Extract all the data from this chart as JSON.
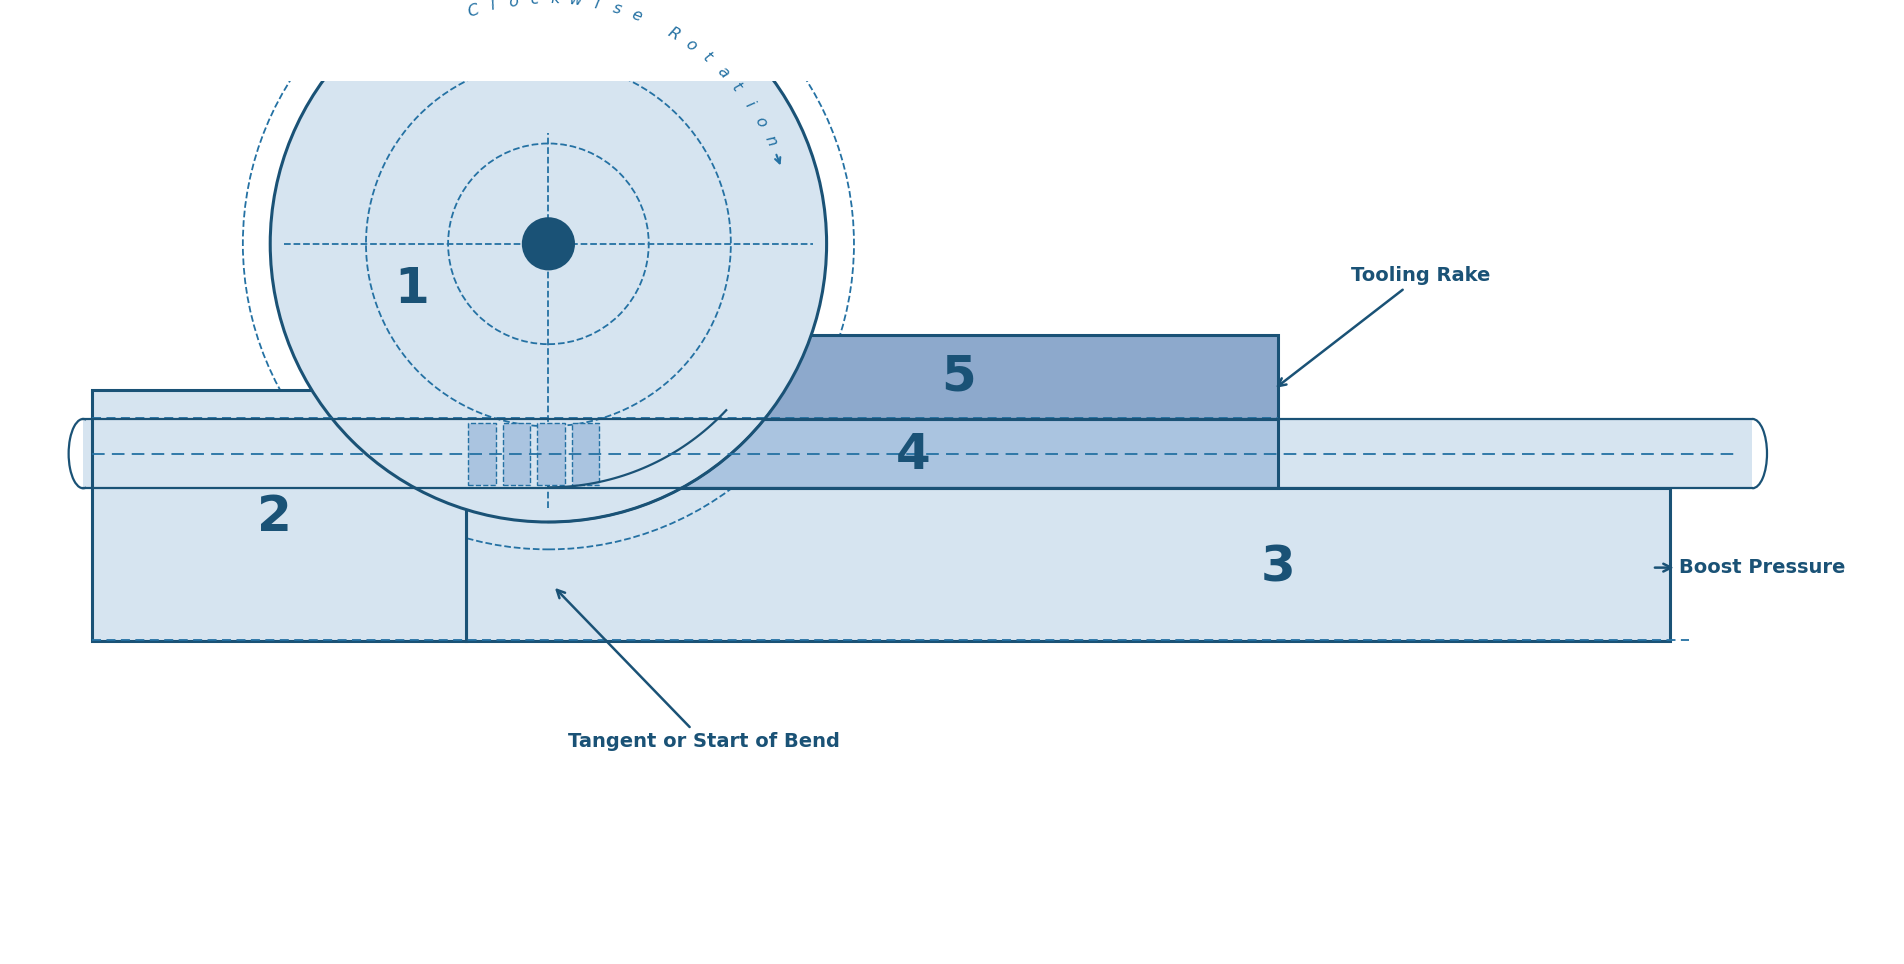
{
  "bg_color": "#ffffff",
  "dark_blue": "#1a5276",
  "mid_blue": "#2471a3",
  "light_blue_fill": "#d6e4f0",
  "medium_blue_fill": "#aac4e0",
  "die_dark": "#8fafd6",
  "rake_fill": "#8da9cc",
  "clockwise_rotation": "Clockwise Rotation",
  "tooling_rake": "Tooling Rake",
  "boost_pressure": "Boost Pressure",
  "tangent": "Tangent or Start of Bend"
}
